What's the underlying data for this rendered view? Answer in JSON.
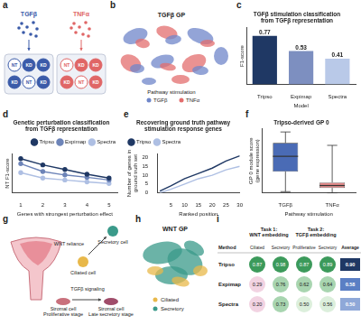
{
  "panel_labels": [
    "a",
    "b",
    "c",
    "d",
    "e",
    "f",
    "g",
    "h",
    "i"
  ],
  "panel_a": {
    "stimuli": [
      {
        "label": "TGFβ",
        "color": "#3b5ba9",
        "wells": [
          "NT",
          "KD",
          "KD",
          "KD",
          "NT",
          "KD"
        ]
      },
      {
        "label": "TNFα",
        "color": "#e06666",
        "wells": [
          "NT",
          "KD",
          "KD",
          "KD",
          "NT",
          "KD"
        ]
      }
    ]
  },
  "panel_b": {
    "title": "TGFβ GP",
    "legend_title": "Pathway stimulation",
    "groups": [
      {
        "name": "TGFβ",
        "color": "#6f86c9"
      },
      {
        "name": "TNFα",
        "color": "#e36d6d"
      }
    ]
  },
  "chart_data": [
    {
      "type": "bar",
      "title": [
        "TGFβ stimulation classification",
        "from TGFβ representation"
      ],
      "x_label": "Model",
      "y_label": "F1-score",
      "categories": [
        "Tripso",
        "Expimap",
        "Spectra"
      ],
      "values": [
        0.77,
        0.53,
        0.41
      ],
      "colors": [
        "#1f3864",
        "#7d8fc0",
        "#b9c9e8"
      ],
      "ylim": [
        0,
        0.9
      ],
      "grid": false,
      "data_labels": true,
      "tick_labels": "x"
    },
    {
      "type": "line",
      "title": [
        "Genetic perturbation classification",
        "from TGFβ representation"
      ],
      "x_label": "Genes with strongest perturbation effect",
      "y_label": "NT F1-score",
      "x": [
        1,
        2,
        3,
        4,
        5
      ],
      "series": [
        {
          "name": "Tripso",
          "color": "#1f3864",
          "values": [
            0.88,
            0.72,
            0.6,
            0.48,
            0.38
          ]
        },
        {
          "name": "Expimap",
          "color": "#6d84b8",
          "values": [
            0.75,
            0.55,
            0.46,
            0.4,
            0.33
          ]
        },
        {
          "name": "Spectra",
          "color": "#aebfe3",
          "values": [
            0.52,
            0.38,
            0.33,
            0.28,
            0.24
          ]
        }
      ],
      "xlim": [
        0.6,
        5.4
      ],
      "xticks": [
        1,
        2,
        3,
        4,
        5
      ],
      "ylim": [
        0,
        1
      ],
      "grid": false,
      "legend": "upper right",
      "marker": "circle",
      "tick_labels": "x"
    },
    {
      "type": "line",
      "title": [
        "Recovering ground truth pathway",
        "stimulation response genes"
      ],
      "x_label": "Ranked position",
      "y_label": "Number of genes in\nground truth set",
      "x": [
        1,
        5,
        10,
        15,
        20,
        25,
        30
      ],
      "series": [
        {
          "name": "Tripso",
          "color": "#1f3864",
          "values": [
            1,
            4,
            8,
            11,
            14,
            18,
            21
          ]
        },
        {
          "name": "Spectra",
          "color": "#aebfe3",
          "values": [
            0,
            2,
            5,
            8,
            10,
            13,
            15
          ]
        }
      ],
      "xlim": [
        0,
        30
      ],
      "xticks": [
        5,
        10,
        15,
        20,
        25,
        30
      ],
      "ylim": [
        0,
        22
      ],
      "yticks": [
        0,
        5,
        10,
        15,
        20
      ],
      "grid": false,
      "legend": "upper left"
    },
    {
      "type": "box",
      "title": "Tripso-derived GP 0",
      "x_label": "Pathway stimulation",
      "y_label": "GP 0 module score\n(gene expression)",
      "categories": [
        "TGFβ",
        "TNFα"
      ],
      "min": [
        0.02,
        0.0
      ],
      "q1": [
        0.35,
        0.08
      ],
      "median": [
        0.6,
        0.12
      ],
      "q3": [
        0.82,
        0.17
      ],
      "max": [
        1.0,
        0.78
      ],
      "colors": [
        "#4a6bb5",
        "#e48a8a"
      ],
      "ylim": [
        0,
        1.05
      ],
      "grid": false,
      "tick_labels": "x"
    }
  ],
  "panel_g": {
    "secretory": [
      "Secretory cell"
    ],
    "wnt": [
      "WNT reliance"
    ],
    "ciliated": [
      "Ciliated cell"
    ],
    "tgf": [
      "TGFβ signaling"
    ],
    "stromal_early": [
      "Stromal cell",
      "Proliferative stage"
    ],
    "stromal_late": [
      "Stromal cell",
      "Late secretory stage"
    ]
  },
  "panel_h": {
    "title": "WNT GP",
    "groups": [
      {
        "name": "Ciliated",
        "color": "#e8b84a"
      },
      {
        "name": "Secretory",
        "color": "#3a9a8a"
      }
    ]
  },
  "panel_i": {
    "method": "Method",
    "tasks": [
      {
        "label": [
          "Task 1:",
          "WNT embedding"
        ],
        "columns": [
          "Ciliated",
          "Secretory"
        ]
      },
      {
        "label": [
          "Task 2:",
          "TGFβ embedding"
        ],
        "columns": [
          "Proliferative",
          "Secretory"
        ]
      }
    ],
    "average": "Average",
    "rows": [
      {
        "method": "Tripso",
        "cells": [
          "0.87",
          "0.98",
          "0.87",
          "0.89"
        ],
        "average": "0.90",
        "average_color": "#1f3864"
      },
      {
        "method": "Expimap",
        "cells": [
          "0.29",
          "0.76",
          "0.62",
          "0.64"
        ],
        "average": "0.58",
        "average_color": "#5b7fc4"
      },
      {
        "method": "Spectra",
        "cells": [
          "0.20",
          "0.73",
          "0.50",
          "0.56"
        ],
        "average": "0.50",
        "average_color": "#8fa8d8"
      }
    ]
  }
}
